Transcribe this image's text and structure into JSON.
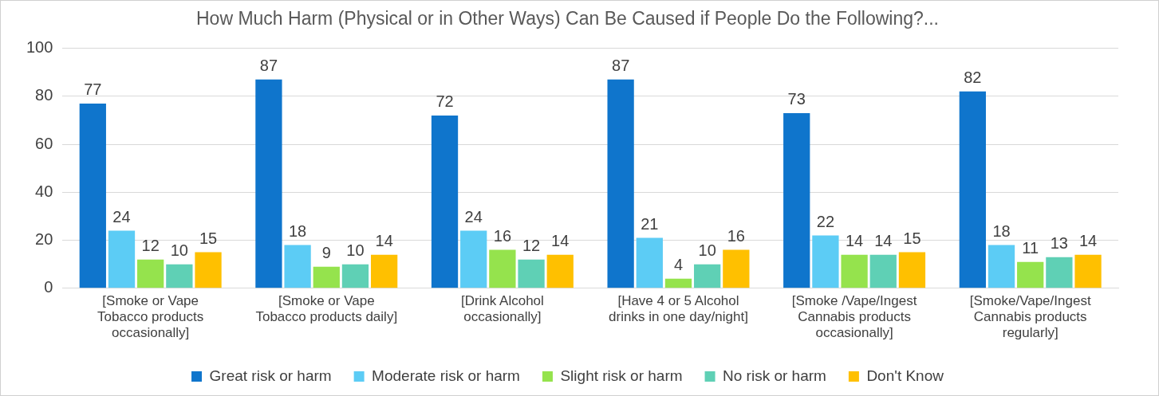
{
  "chart_data": {
    "type": "bar",
    "title": "How Much Harm (Physical or in Other Ways) Can Be Caused if People Do the Following?...",
    "categories": [
      "[Smoke or Vape Tobacco products occasionally]",
      "[Smoke or Vape Tobacco products daily]",
      "[Drink Alcohol occasionally]",
      "[Have 4 or 5 Alcohol drinks in one day/night]",
      "[Smoke /Vape/Ingest Cannabis products occasionally]",
      "[Smoke/Vape/Ingest Cannabis products regularly]"
    ],
    "series": [
      {
        "name": "Great risk or harm",
        "color": "#0f75cc",
        "values": [
          77,
          87,
          72,
          87,
          73,
          82
        ]
      },
      {
        "name": "Moderate risk or harm",
        "color": "#5cccf5",
        "values": [
          24,
          18,
          24,
          21,
          22,
          18
        ]
      },
      {
        "name": "Slight risk or harm",
        "color": "#95e34d",
        "values": [
          12,
          9,
          16,
          4,
          14,
          11
        ]
      },
      {
        "name": "No risk or harm",
        "color": "#5fd0b5",
        "values": [
          10,
          10,
          12,
          10,
          14,
          13
        ]
      },
      {
        "name": "Don't Know",
        "color": "#ffc000",
        "values": [
          15,
          14,
          14,
          16,
          15,
          14
        ]
      }
    ],
    "ylim": [
      0,
      100
    ],
    "yticks": [
      0,
      20,
      40,
      60,
      80,
      100
    ],
    "grid": "y",
    "legend": "bottom",
    "data_labels": true
  }
}
